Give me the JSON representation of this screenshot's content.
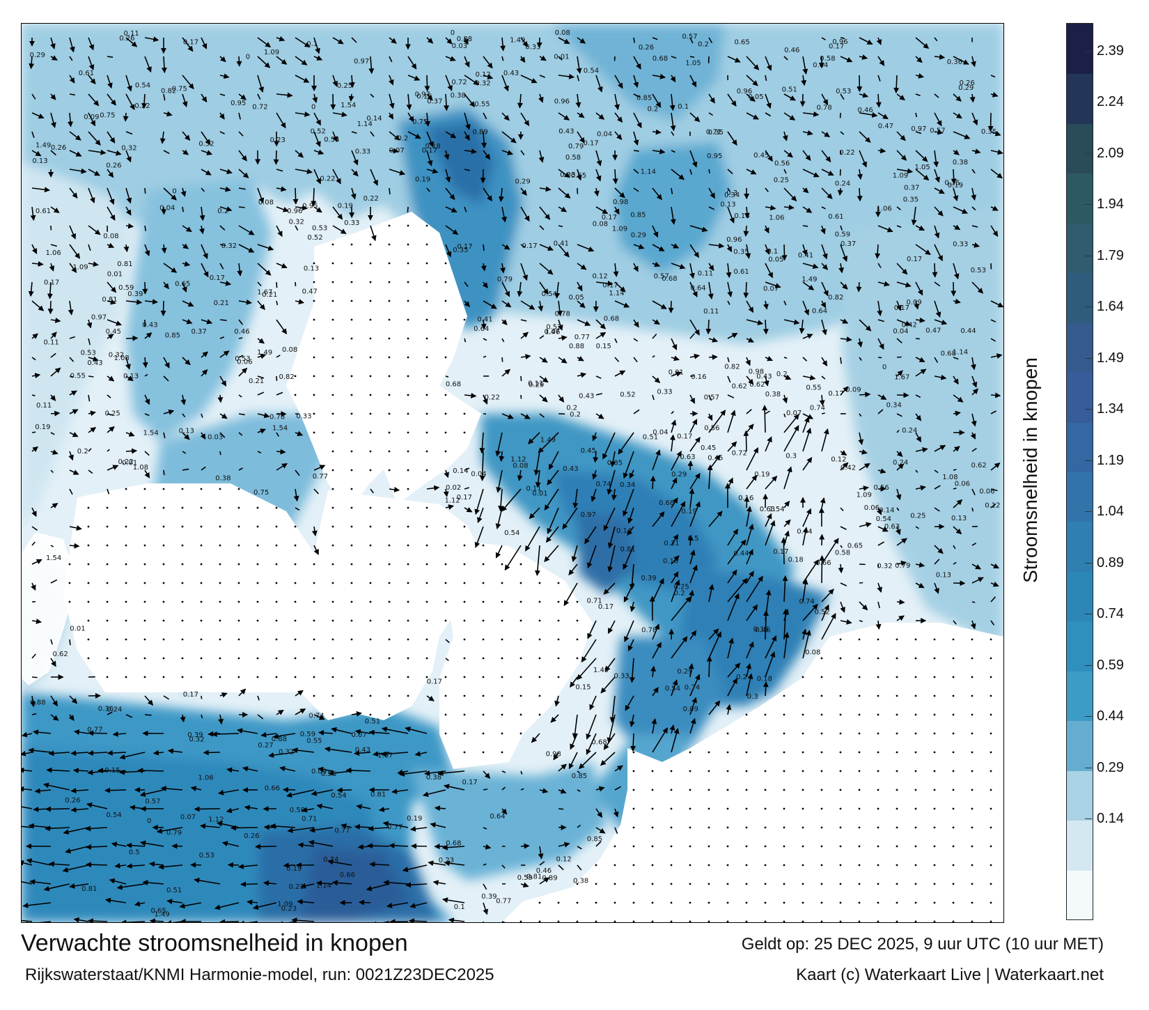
{
  "map": {
    "type": "current-speed map",
    "legend": {
      "title": "Stroomsnelheid in knopen",
      "ticks": [
        "0.14",
        "0.29",
        "0.44",
        "0.59",
        "0.74",
        "0.89",
        "1.04",
        "1.19",
        "1.34",
        "1.49",
        "1.64",
        "1.79",
        "1.94",
        "2.09",
        "2.24",
        "2.39"
      ],
      "colors": [
        "#f4f9fc",
        "#d3e8f1",
        "#a9d2e4",
        "#64add0",
        "#3d9cc6",
        "#2f8fbd",
        "#2c87b7",
        "#2f7fb0",
        "#3274aa",
        "#3567a2",
        "#375c9a",
        "#355a8d",
        "#2f5c7c",
        "#2f5d6e",
        "#2c5a63",
        "#294b5a",
        "#23365a",
        "#1a2047"
      ]
    },
    "speed_labels": [
      {
        "text": "0.19"
      },
      {
        "text": "0.15"
      },
      {
        "text": "0.17"
      },
      {
        "text": "0.14"
      },
      {
        "text": "0.07"
      },
      {
        "text": "0.09"
      },
      {
        "text": "0.17"
      },
      {
        "text": "0.23"
      },
      {
        "text": "0.27"
      },
      {
        "text": "0.29"
      },
      {
        "text": "0.35"
      },
      {
        "text": "0.24"
      },
      {
        "text": "0.22"
      },
      {
        "text": "0.37"
      },
      {
        "text": "0.17"
      },
      {
        "text": "0.16"
      },
      {
        "text": "0.25"
      },
      {
        "text": "0.04"
      },
      {
        "text": "0.1"
      },
      {
        "text": "0.33"
      },
      {
        "text": "0.55"
      },
      {
        "text": "0.89"
      },
      {
        "text": "0.82"
      },
      {
        "text": "0.98"
      },
      {
        "text": "1.08"
      },
      {
        "text": "0.3"
      },
      {
        "text": "0.31"
      },
      {
        "text": "0.28"
      },
      {
        "text": "0.19"
      },
      {
        "text": "0.21"
      },
      {
        "text": "0.12"
      },
      {
        "text": "0.08"
      },
      {
        "text": "0.38"
      },
      {
        "text": "0.42"
      },
      {
        "text": "0.46"
      },
      {
        "text": "0.41"
      },
      {
        "text": "0.18"
      },
      {
        "text": "0.26"
      },
      {
        "text": "0.13"
      },
      {
        "text": "0.11"
      },
      {
        "text": "0.06"
      },
      {
        "text": "0.58"
      },
      {
        "text": "0.62"
      },
      {
        "text": "0.71"
      },
      {
        "text": "0.79"
      },
      {
        "text": "0.88"
      },
      {
        "text": "0.95"
      },
      {
        "text": "1.06"
      },
      {
        "text": "1.14"
      },
      {
        "text": "1.49"
      },
      {
        "text": "1.67"
      },
      {
        "text": "1.54"
      },
      {
        "text": "0.85"
      },
      {
        "text": "0.74"
      },
      {
        "text": "0.66"
      },
      {
        "text": "0.54"
      },
      {
        "text": "0.47"
      },
      {
        "text": "0.45"
      },
      {
        "text": "0.39"
      },
      {
        "text": "0.78"
      },
      {
        "text": "0.68"
      },
      {
        "text": "0.77"
      },
      {
        "text": "0.59"
      },
      {
        "text": "0.5"
      },
      {
        "text": "0.52"
      },
      {
        "text": "0.61"
      },
      {
        "text": "0.75"
      },
      {
        "text": "0.65"
      },
      {
        "text": "0.57"
      },
      {
        "text": "0.51"
      },
      {
        "text": "0.44"
      },
      {
        "text": "0.43"
      },
      {
        "text": "0.56"
      },
      {
        "text": "0.63"
      },
      {
        "text": "0.81"
      },
      {
        "text": "0.97"
      },
      {
        "text": "1.05"
      },
      {
        "text": "1.12"
      },
      {
        "text": "1.09"
      },
      {
        "text": "0.96"
      },
      {
        "text": "0.64"
      },
      {
        "text": "0.72"
      },
      {
        "text": "0.53"
      },
      {
        "text": "0.36"
      },
      {
        "text": "0.34"
      },
      {
        "text": "0.32"
      },
      {
        "text": "0.2"
      },
      {
        "text": "0.05"
      },
      {
        "text": "0.03"
      },
      {
        "text": "0.02"
      },
      {
        "text": "0.01"
      },
      {
        "text": "0"
      }
    ]
  },
  "footer": {
    "title": "Verwachte stroomsnelheid in knopen",
    "source": "Rijkswaterstaat/KNMI Harmonie-model, run: 0021Z23DEC2025",
    "valid": "Geldt op: 25 DEC 2025, 9 uur UTC (10 uur MET)",
    "credit": "Kaart (c) Waterkaart Live | Waterkaart.net"
  }
}
